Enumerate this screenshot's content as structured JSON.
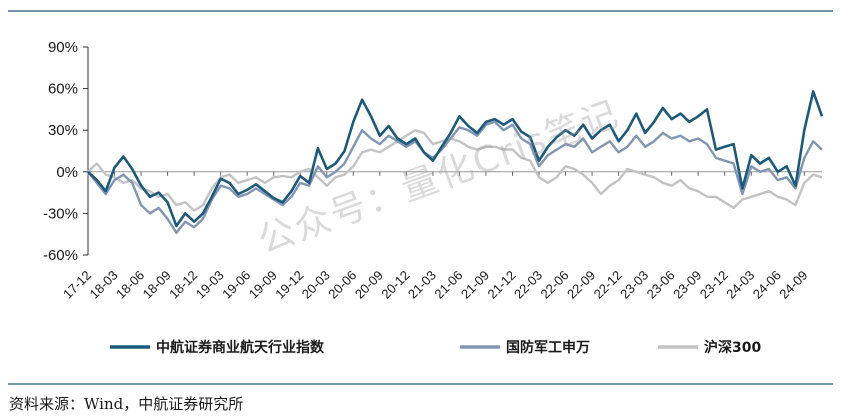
{
  "source": "资料来源：Wind，中航证券研究所",
  "watermark": "公众号：量化Cris笔记",
  "colors": {
    "rule": "#1f5673",
    "series_1": "#1c5a7c",
    "series_2": "#8096b4",
    "series_3": "#c3c3c3",
    "zero_line": "#9a9a9a"
  },
  "chart_data": {
    "type": "line",
    "title": "",
    "xlabel": "",
    "ylabel": "",
    "ylim": [
      -60,
      90
    ],
    "yticks": [
      "90%",
      "60%",
      "30%",
      "0%",
      "-30%",
      "-60%"
    ],
    "ytick_values": [
      90,
      60,
      30,
      0,
      -30,
      -60
    ],
    "x_start": "2017-12",
    "x_end": "2024-11",
    "xticks": [
      "17-12",
      "18-03",
      "18-06",
      "18-09",
      "18-12",
      "19-03",
      "19-06",
      "19-09",
      "19-12",
      "20-03",
      "20-06",
      "20-09",
      "20-12",
      "21-03",
      "21-06",
      "21-09",
      "21-12",
      "22-03",
      "22-06",
      "22-09",
      "22-12",
      "23-03",
      "23-06",
      "23-09",
      "23-12",
      "24-03",
      "24-06",
      "24-09"
    ],
    "grid": false,
    "legend_position": "bottom",
    "series": [
      {
        "name": "中航证券商业航天行业指数",
        "color_key": "series_1",
        "points": [
          [
            "2017-12",
            0
          ],
          [
            "2018-01",
            -6
          ],
          [
            "2018-02",
            -14
          ],
          [
            "2018-03",
            3
          ],
          [
            "2018-04",
            11
          ],
          [
            "2018-05",
            2
          ],
          [
            "2018-06",
            -10
          ],
          [
            "2018-07",
            -18
          ],
          [
            "2018-08",
            -15
          ],
          [
            "2018-09",
            -22
          ],
          [
            "2018-10",
            -39
          ],
          [
            "2018-11",
            -30
          ],
          [
            "2018-12",
            -36
          ],
          [
            "2019-01",
            -30
          ],
          [
            "2019-02",
            -18
          ],
          [
            "2019-03",
            -5
          ],
          [
            "2019-04",
            -8
          ],
          [
            "2019-05",
            -16
          ],
          [
            "2019-06",
            -13
          ],
          [
            "2019-07",
            -9
          ],
          [
            "2019-08",
            -14
          ],
          [
            "2019-09",
            -19
          ],
          [
            "2019-10",
            -22
          ],
          [
            "2019-11",
            -14
          ],
          [
            "2019-12",
            -3
          ],
          [
            "2020-01",
            -8
          ],
          [
            "2020-02",
            17
          ],
          [
            "2020-03",
            2
          ],
          [
            "2020-04",
            6
          ],
          [
            "2020-05",
            15
          ],
          [
            "2020-06",
            36
          ],
          [
            "2020-07",
            52
          ],
          [
            "2020-08",
            40
          ],
          [
            "2020-09",
            26
          ],
          [
            "2020-10",
            33
          ],
          [
            "2020-11",
            24
          ],
          [
            "2020-12",
            20
          ],
          [
            "2021-01",
            24
          ],
          [
            "2021-02",
            14
          ],
          [
            "2021-03",
            8
          ],
          [
            "2021-04",
            18
          ],
          [
            "2021-05",
            28
          ],
          [
            "2021-06",
            40
          ],
          [
            "2021-07",
            33
          ],
          [
            "2021-08",
            28
          ],
          [
            "2021-09",
            36
          ],
          [
            "2021-10",
            38
          ],
          [
            "2021-11",
            34
          ],
          [
            "2021-12",
            38
          ],
          [
            "2022-01",
            29
          ],
          [
            "2022-02",
            25
          ],
          [
            "2022-03",
            8
          ],
          [
            "2022-04",
            18
          ],
          [
            "2022-05",
            25
          ],
          [
            "2022-06",
            30
          ],
          [
            "2022-07",
            26
          ],
          [
            "2022-08",
            34
          ],
          [
            "2022-09",
            24
          ],
          [
            "2022-10",
            30
          ],
          [
            "2022-11",
            34
          ],
          [
            "2022-12",
            22
          ],
          [
            "2023-01",
            30
          ],
          [
            "2023-02",
            42
          ],
          [
            "2023-03",
            28
          ],
          [
            "2023-04",
            36
          ],
          [
            "2023-05",
            46
          ],
          [
            "2023-06",
            38
          ],
          [
            "2023-07",
            42
          ],
          [
            "2023-08",
            36
          ],
          [
            "2023-09",
            40
          ],
          [
            "2023-10",
            45
          ],
          [
            "2023-11",
            16
          ],
          [
            "2023-12",
            18
          ],
          [
            "2024-01",
            20
          ],
          [
            "2024-02",
            -12
          ],
          [
            "2024-03",
            12
          ],
          [
            "2024-04",
            6
          ],
          [
            "2024-05",
            10
          ],
          [
            "2024-06",
            0
          ],
          [
            "2024-07",
            4
          ],
          [
            "2024-08",
            -10
          ],
          [
            "2024-09",
            30
          ],
          [
            "2024-10",
            58
          ],
          [
            "2024-11",
            40
          ]
        ]
      },
      {
        "name": "国防军工申万",
        "color_key": "series_2",
        "points": [
          [
            "2017-12",
            0
          ],
          [
            "2018-01",
            -8
          ],
          [
            "2018-02",
            -16
          ],
          [
            "2018-03",
            -6
          ],
          [
            "2018-04",
            -2
          ],
          [
            "2018-05",
            -8
          ],
          [
            "2018-06",
            -24
          ],
          [
            "2018-07",
            -30
          ],
          [
            "2018-08",
            -26
          ],
          [
            "2018-09",
            -34
          ],
          [
            "2018-10",
            -44
          ],
          [
            "2018-11",
            -36
          ],
          [
            "2018-12",
            -40
          ],
          [
            "2019-01",
            -34
          ],
          [
            "2019-02",
            -20
          ],
          [
            "2019-03",
            -10
          ],
          [
            "2019-04",
            -12
          ],
          [
            "2019-05",
            -18
          ],
          [
            "2019-06",
            -16
          ],
          [
            "2019-07",
            -12
          ],
          [
            "2019-08",
            -16
          ],
          [
            "2019-09",
            -20
          ],
          [
            "2019-10",
            -24
          ],
          [
            "2019-11",
            -18
          ],
          [
            "2019-12",
            -8
          ],
          [
            "2020-01",
            -10
          ],
          [
            "2020-02",
            4
          ],
          [
            "2020-03",
            -4
          ],
          [
            "2020-04",
            0
          ],
          [
            "2020-05",
            6
          ],
          [
            "2020-06",
            18
          ],
          [
            "2020-07",
            30
          ],
          [
            "2020-08",
            24
          ],
          [
            "2020-09",
            20
          ],
          [
            "2020-10",
            26
          ],
          [
            "2020-11",
            22
          ],
          [
            "2020-12",
            18
          ],
          [
            "2021-01",
            22
          ],
          [
            "2021-02",
            14
          ],
          [
            "2021-03",
            10
          ],
          [
            "2021-04",
            16
          ],
          [
            "2021-05",
            24
          ],
          [
            "2021-06",
            32
          ],
          [
            "2021-07",
            30
          ],
          [
            "2021-08",
            26
          ],
          [
            "2021-09",
            34
          ],
          [
            "2021-10",
            36
          ],
          [
            "2021-11",
            30
          ],
          [
            "2021-12",
            34
          ],
          [
            "2022-01",
            24
          ],
          [
            "2022-02",
            20
          ],
          [
            "2022-03",
            4
          ],
          [
            "2022-04",
            12
          ],
          [
            "2022-05",
            16
          ],
          [
            "2022-06",
            20
          ],
          [
            "2022-07",
            18
          ],
          [
            "2022-08",
            24
          ],
          [
            "2022-09",
            14
          ],
          [
            "2022-10",
            18
          ],
          [
            "2022-11",
            22
          ],
          [
            "2022-12",
            14
          ],
          [
            "2023-01",
            18
          ],
          [
            "2023-02",
            26
          ],
          [
            "2023-03",
            18
          ],
          [
            "2023-04",
            22
          ],
          [
            "2023-05",
            28
          ],
          [
            "2023-06",
            24
          ],
          [
            "2023-07",
            26
          ],
          [
            "2023-08",
            22
          ],
          [
            "2023-09",
            24
          ],
          [
            "2023-10",
            20
          ],
          [
            "2023-11",
            10
          ],
          [
            "2023-12",
            8
          ],
          [
            "2024-01",
            6
          ],
          [
            "2024-02",
            -16
          ],
          [
            "2024-03",
            4
          ],
          [
            "2024-04",
            0
          ],
          [
            "2024-05",
            2
          ],
          [
            "2024-06",
            -6
          ],
          [
            "2024-07",
            -4
          ],
          [
            "2024-08",
            -12
          ],
          [
            "2024-09",
            10
          ],
          [
            "2024-10",
            22
          ],
          [
            "2024-11",
            16
          ]
        ]
      },
      {
        "name": "沪深300",
        "color_key": "series_3",
        "points": [
          [
            "2017-12",
            0
          ],
          [
            "2018-01",
            6
          ],
          [
            "2018-02",
            -2
          ],
          [
            "2018-03",
            -4
          ],
          [
            "2018-04",
            -8
          ],
          [
            "2018-05",
            -6
          ],
          [
            "2018-06",
            -12
          ],
          [
            "2018-07",
            -14
          ],
          [
            "2018-08",
            -18
          ],
          [
            "2018-09",
            -16
          ],
          [
            "2018-10",
            -24
          ],
          [
            "2018-11",
            -22
          ],
          [
            "2018-12",
            -28
          ],
          [
            "2019-01",
            -24
          ],
          [
            "2019-02",
            -12
          ],
          [
            "2019-03",
            -4
          ],
          [
            "2019-04",
            -2
          ],
          [
            "2019-05",
            -8
          ],
          [
            "2019-06",
            -6
          ],
          [
            "2019-07",
            -4
          ],
          [
            "2019-08",
            -8
          ],
          [
            "2019-09",
            -4
          ],
          [
            "2019-10",
            -3
          ],
          [
            "2019-11",
            -4
          ],
          [
            "2019-12",
            0
          ],
          [
            "2020-01",
            2
          ],
          [
            "2020-02",
            -4
          ],
          [
            "2020-03",
            -10
          ],
          [
            "2020-04",
            -4
          ],
          [
            "2020-05",
            -2
          ],
          [
            "2020-06",
            4
          ],
          [
            "2020-07",
            14
          ],
          [
            "2020-08",
            16
          ],
          [
            "2020-09",
            14
          ],
          [
            "2020-10",
            18
          ],
          [
            "2020-11",
            22
          ],
          [
            "2020-12",
            26
          ],
          [
            "2021-01",
            30
          ],
          [
            "2021-02",
            28
          ],
          [
            "2021-03",
            20
          ],
          [
            "2021-04",
            22
          ],
          [
            "2021-05",
            24
          ],
          [
            "2021-06",
            22
          ],
          [
            "2021-07",
            18
          ],
          [
            "2021-08",
            16
          ],
          [
            "2021-09",
            18
          ],
          [
            "2021-10",
            18
          ],
          [
            "2021-11",
            16
          ],
          [
            "2021-12",
            16
          ],
          [
            "2022-01",
            10
          ],
          [
            "2022-02",
            8
          ],
          [
            "2022-03",
            -4
          ],
          [
            "2022-04",
            -8
          ],
          [
            "2022-05",
            -4
          ],
          [
            "2022-06",
            4
          ],
          [
            "2022-07",
            2
          ],
          [
            "2022-08",
            -2
          ],
          [
            "2022-09",
            -8
          ],
          [
            "2022-10",
            -16
          ],
          [
            "2022-11",
            -10
          ],
          [
            "2022-12",
            -6
          ],
          [
            "2023-01",
            2
          ],
          [
            "2023-02",
            0
          ],
          [
            "2023-03",
            -2
          ],
          [
            "2023-04",
            -4
          ],
          [
            "2023-05",
            -8
          ],
          [
            "2023-06",
            -10
          ],
          [
            "2023-07",
            -6
          ],
          [
            "2023-08",
            -12
          ],
          [
            "2023-09",
            -14
          ],
          [
            "2023-10",
            -18
          ],
          [
            "2023-11",
            -18
          ],
          [
            "2023-12",
            -22
          ],
          [
            "2024-01",
            -26
          ],
          [
            "2024-02",
            -20
          ],
          [
            "2024-03",
            -18
          ],
          [
            "2024-04",
            -16
          ],
          [
            "2024-05",
            -14
          ],
          [
            "2024-06",
            -18
          ],
          [
            "2024-07",
            -20
          ],
          [
            "2024-08",
            -24
          ],
          [
            "2024-09",
            -8
          ],
          [
            "2024-10",
            -2
          ],
          [
            "2024-11",
            -4
          ]
        ]
      }
    ]
  }
}
